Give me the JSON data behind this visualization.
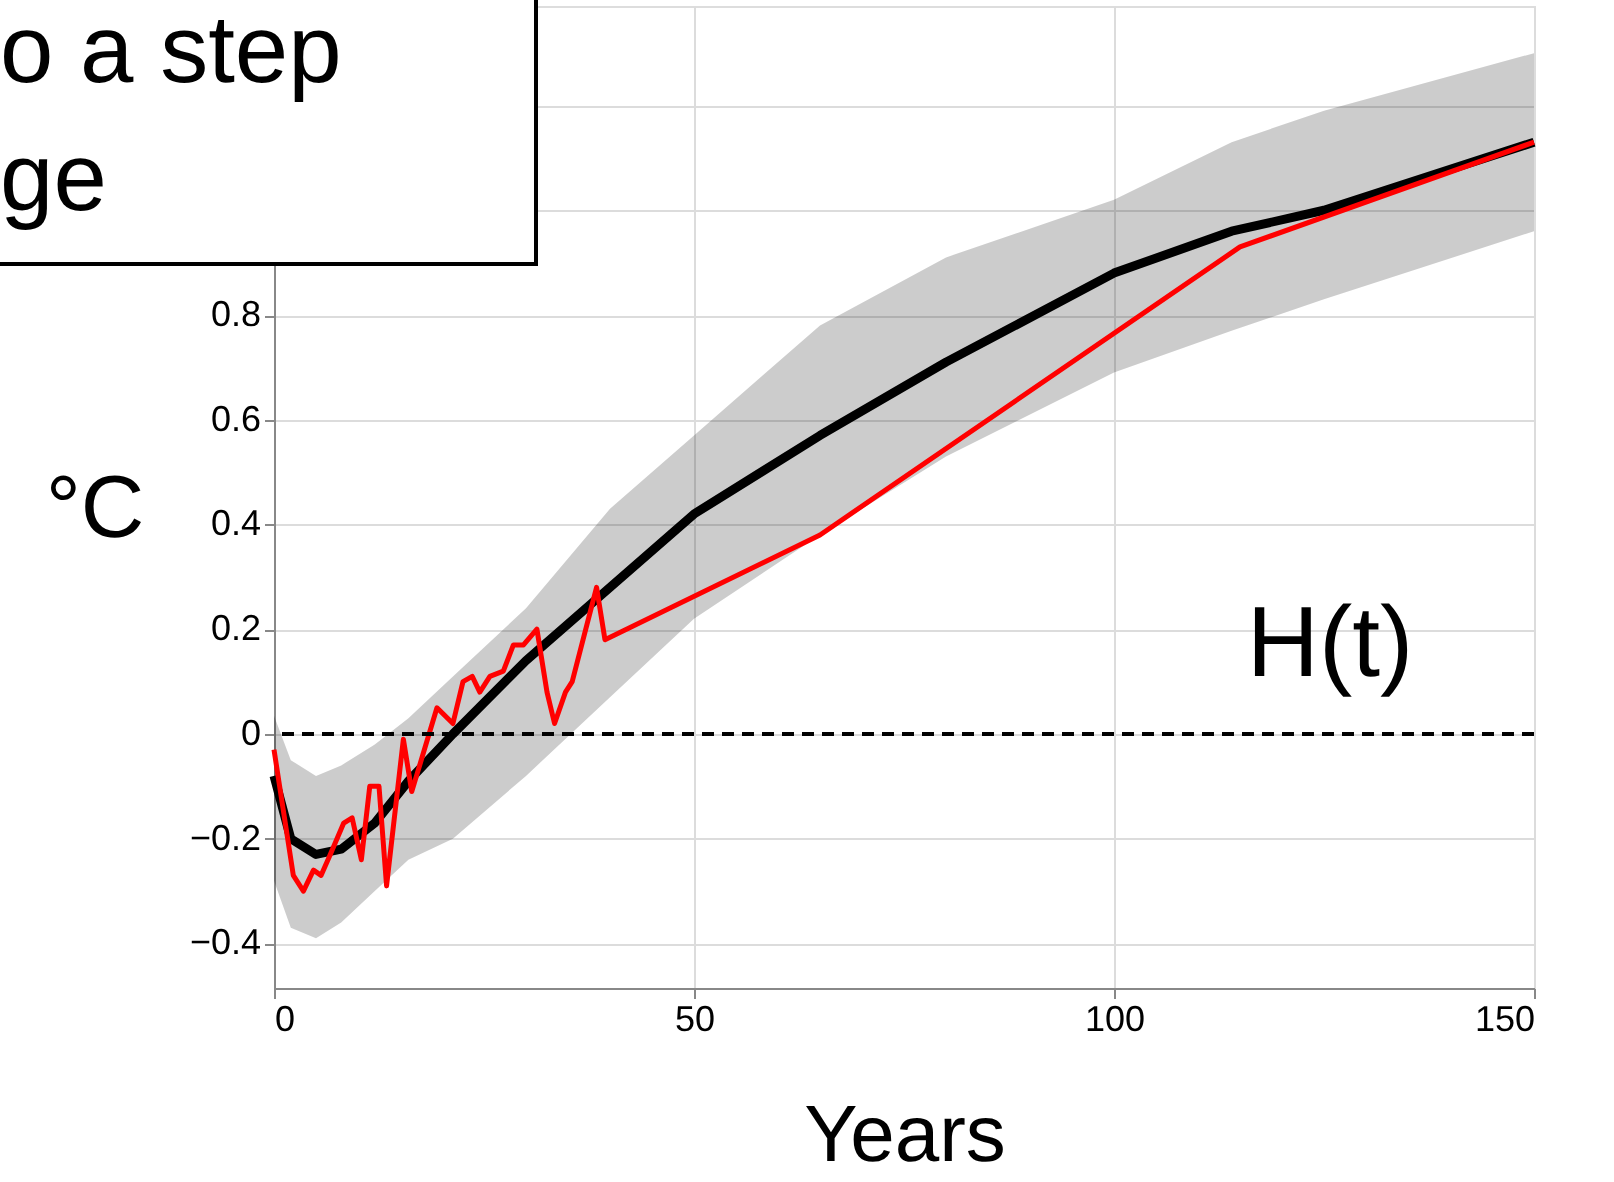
{
  "chart_data": {
    "type": "line",
    "xlabel": "Years",
    "ylabel": "°C",
    "annotations": [
      "o a step\nge",
      "H(t)"
    ],
    "xlim": [
      0,
      150
    ],
    "xticks": [
      0,
      50,
      100,
      150
    ],
    "ylim": [
      -0.485,
      1.39
    ],
    "yticks": [
      -0.4,
      -0.2,
      0,
      0.2,
      0.4,
      0.6,
      0.8,
      {
        "value": 1,
        "label": null
      },
      {
        "value": 1.2,
        "label": null
      }
    ],
    "grid": true,
    "series": [
      {
        "color": "#000000",
        "x": [
          0,
          2,
          5,
          8,
          12,
          16,
          21.3,
          30,
          40,
          50,
          65,
          80,
          100,
          114,
          125,
          150
        ],
        "values": [
          -0.08,
          -0.2,
          -0.23,
          -0.22,
          -0.17,
          -0.09,
          0,
          0.14,
          0.28,
          0.42,
          0.57,
          0.71,
          0.88,
          0.96,
          1.0,
          1.13
        ],
        "lower": [
          -0.28,
          -0.37,
          -0.39,
          -0.36,
          -0.3,
          -0.24,
          -0.2,
          -0.08,
          0.07,
          0.22,
          0.38,
          0.53,
          0.69,
          0.77,
          0.83,
          0.96
        ],
        "upper": [
          0.035,
          -0.05,
          -0.08,
          -0.06,
          -0.02,
          0.03,
          0.11,
          0.24,
          0.43,
          0.57,
          0.78,
          0.91,
          1.02,
          1.13,
          1.19,
          1.3
        ]
      },
      {
        "color": "#ff0000",
        "x": [
          0,
          2.3,
          3.5,
          4.7,
          5.6,
          6.7,
          8.3,
          9.3,
          10.4,
          11.4,
          12.5,
          13.4,
          15.4,
          16.4,
          19.4,
          21.3,
          22.5,
          23.6,
          24.5,
          25.7,
          27.3,
          28.5,
          29.7,
          31.3,
          32.5,
          33.4,
          34.7,
          35.5,
          38.4,
          39.4,
          65,
          115,
          150
        ],
        "values": [
          -0.03,
          -0.27,
          -0.3,
          -0.26,
          -0.27,
          -0.23,
          -0.17,
          -0.16,
          -0.24,
          -0.1,
          -0.1,
          -0.29,
          -0.01,
          -0.11,
          0.05,
          0.02,
          0.1,
          0.11,
          0.08,
          0.11,
          0.12,
          0.17,
          0.17,
          0.2,
          0.08,
          0.02,
          0.08,
          0.1,
          0.28,
          0.18,
          0.38,
          0.93,
          1.13
        ]
      }
    ],
    "ref_lines": [
      {
        "axis": "y",
        "value": 0,
        "color": "#000000",
        "line_style": "dashed"
      }
    ]
  }
}
